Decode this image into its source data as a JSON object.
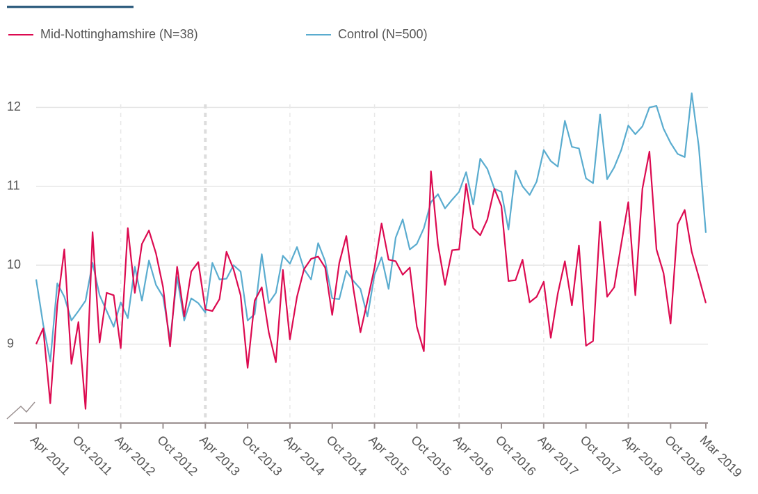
{
  "chart_data": {
    "type": "line",
    "categories": [
      "Apr 2011",
      null,
      null,
      null,
      null,
      null,
      "Oct 2011",
      null,
      null,
      null,
      null,
      null,
      "Apr 2012",
      null,
      null,
      null,
      null,
      null,
      "Oct 2012",
      null,
      null,
      null,
      null,
      null,
      "Apr 2013",
      null,
      null,
      null,
      null,
      null,
      "Oct 2013",
      null,
      null,
      null,
      null,
      null,
      "Apr 2014",
      null,
      null,
      null,
      null,
      null,
      "Oct 2014",
      null,
      null,
      null,
      null,
      null,
      "Apr 2015",
      null,
      null,
      null,
      null,
      null,
      "Oct 2015",
      null,
      null,
      null,
      null,
      null,
      "Apr 2016",
      null,
      null,
      null,
      null,
      null,
      "Oct 2016",
      null,
      null,
      null,
      null,
      null,
      "Apr 2017",
      null,
      null,
      null,
      null,
      null,
      "Oct 2017",
      null,
      null,
      null,
      null,
      null,
      "Apr 2018",
      null,
      null,
      null,
      null,
      null,
      "Oct 2018",
      null,
      null,
      null,
      null,
      "Mar 2019"
    ],
    "series": [
      {
        "name": "Mid-Nottinghamshire (N=38)",
        "color": "#dc0a50",
        "values": [
          9.0,
          9.2,
          8.25,
          9.5,
          10.2,
          8.75,
          9.28,
          8.18,
          10.42,
          9.02,
          9.65,
          9.62,
          8.95,
          10.47,
          9.65,
          10.27,
          10.44,
          10.15,
          9.72,
          8.97,
          9.98,
          9.35,
          9.92,
          10.04,
          9.44,
          9.42,
          9.57,
          10.17,
          9.95,
          9.62,
          8.7,
          9.55,
          9.72,
          9.15,
          8.77,
          9.94,
          9.06,
          9.6,
          9.95,
          10.08,
          10.11,
          9.97,
          9.37,
          10.03,
          10.37,
          9.7,
          9.15,
          9.55,
          9.97,
          10.53,
          10.07,
          10.05,
          9.88,
          9.97,
          9.22,
          8.91,
          11.19,
          10.26,
          9.75,
          10.19,
          10.2,
          11.03,
          10.47,
          10.38,
          10.58,
          10.97,
          10.75,
          9.8,
          9.81,
          10.07,
          9.53,
          9.6,
          9.79,
          9.08,
          9.64,
          10.05,
          9.49,
          10.25,
          8.98,
          9.04,
          10.55,
          9.6,
          9.72,
          10.27,
          10.8,
          9.62,
          10.97,
          11.44,
          10.2,
          9.9,
          9.26,
          10.52,
          10.7,
          10.17,
          9.85,
          9.52
        ]
      },
      {
        "name": "Control (N=500)",
        "color": "#5aaccf",
        "values": [
          9.82,
          9.25,
          8.78,
          9.77,
          9.6,
          9.3,
          9.42,
          9.55,
          10.03,
          9.62,
          9.42,
          9.22,
          9.53,
          9.33,
          9.98,
          9.55,
          10.06,
          9.75,
          9.6,
          9.05,
          9.85,
          9.3,
          9.58,
          9.52,
          9.4,
          10.03,
          9.82,
          9.83,
          10.0,
          9.92,
          9.3,
          9.38,
          10.14,
          9.52,
          9.65,
          10.12,
          10.02,
          10.23,
          9.95,
          9.82,
          10.28,
          10.05,
          9.58,
          9.57,
          9.93,
          9.8,
          9.7,
          9.35,
          9.88,
          10.1,
          9.7,
          10.35,
          10.58,
          10.2,
          10.27,
          10.47,
          10.8,
          10.9,
          10.72,
          10.83,
          10.93,
          11.18,
          10.77,
          11.35,
          11.22,
          10.97,
          10.93,
          10.45,
          11.2,
          11.0,
          10.89,
          11.06,
          11.46,
          11.32,
          11.25,
          11.83,
          11.5,
          11.48,
          11.1,
          11.04,
          11.91,
          11.09,
          11.24,
          11.46,
          11.77,
          11.66,
          11.76,
          12.0,
          12.02,
          11.73,
          11.55,
          11.41,
          11.37,
          12.18,
          11.5,
          10.41
        ]
      }
    ],
    "ylim": [
      8,
      12.4
    ],
    "yticks": [
      9,
      10,
      11,
      12
    ],
    "grid": true
  }
}
